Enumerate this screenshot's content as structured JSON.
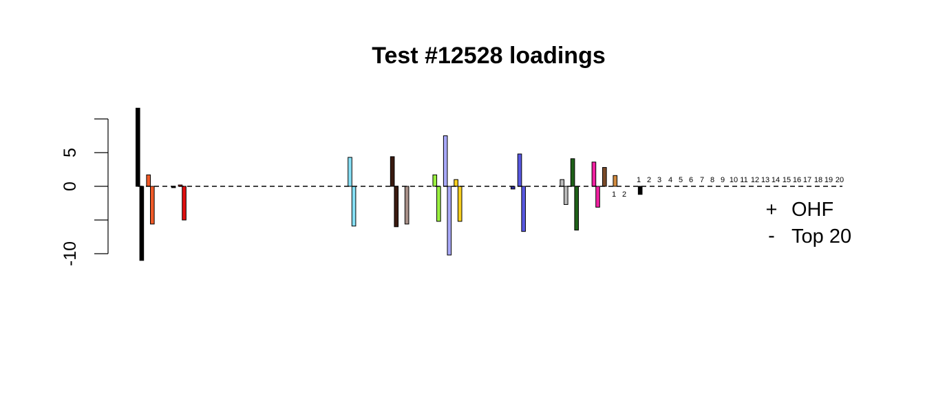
{
  "chart_data": {
    "type": "bar",
    "title": "Test #12528 loadings",
    "xlabel": "",
    "ylabel": "",
    "ylim": [
      -11,
      11
    ],
    "y_ticks": [
      -10,
      0,
      5
    ],
    "y_tick_labels": [
      "-10",
      "0",
      "5"
    ],
    "baseline": "dashed",
    "legend": {
      "placement": "right",
      "entries": [
        {
          "symbol": "+",
          "label": "OHF"
        },
        {
          "symbol": "-",
          "label": "Top 20"
        }
      ]
    },
    "pos_label": "OHF",
    "neg_label": "Top 20",
    "groups": [
      {
        "pos": 11.6,
        "neg": -11.0,
        "color": "#000000"
      },
      {
        "pos": 1.7,
        "neg": -5.6,
        "color": "#F05A28"
      },
      {
        "pos": 0.0,
        "neg": 0.0,
        "color": "#F05A28"
      },
      {
        "pos": 0.0,
        "neg": -0.2,
        "color": "#000000"
      },
      {
        "pos": 0.2,
        "neg": -5.0,
        "color": "#E01010"
      },
      {
        "pos": 0.0,
        "neg": 0.0,
        "color": "#000000"
      },
      {
        "pos": 0.0,
        "neg": 0.0,
        "color": "#000000"
      },
      {
        "pos": 0.0,
        "neg": 0.0,
        "color": "#000000"
      },
      {
        "pos": 0.0,
        "neg": 0.0,
        "color": "#000000"
      },
      {
        "pos": 0.0,
        "neg": 0.0,
        "color": "#000000"
      },
      {
        "pos": 0.0,
        "neg": 0.0,
        "color": "#000000"
      },
      {
        "pos": 0.0,
        "neg": 0.0,
        "color": "#000000"
      },
      {
        "pos": 0.0,
        "neg": 0.0,
        "color": "#000000"
      },
      {
        "pos": 0.0,
        "neg": 0.0,
        "color": "#000000"
      },
      {
        "pos": 0.0,
        "neg": 0.0,
        "color": "#000000"
      },
      {
        "pos": 0.0,
        "neg": 0.0,
        "color": "#000000"
      },
      {
        "pos": 0.0,
        "neg": 0.0,
        "color": "#000000"
      },
      {
        "pos": 0.0,
        "neg": 0.0,
        "color": "#000000"
      },
      {
        "pos": 0.0,
        "neg": 0.0,
        "color": "#000000"
      },
      {
        "pos": 0.0,
        "neg": 0.0,
        "color": "#000000"
      },
      {
        "pos": 4.3,
        "neg": -5.9,
        "color": "#87E0F5"
      },
      {
        "pos": 0.0,
        "neg": 0.0,
        "color": "#000000"
      },
      {
        "pos": 0.0,
        "neg": 0.0,
        "color": "#000000"
      },
      {
        "pos": 0.0,
        "neg": 0.0,
        "color": "#000000"
      },
      {
        "pos": 4.4,
        "neg": -6.0,
        "color": "#3A1A10"
      },
      {
        "pos": 0.0,
        "neg": -5.6,
        "color": "#A89088"
      },
      {
        "pos": 0.0,
        "neg": 0.0,
        "color": "#000000"
      },
      {
        "pos": 0.0,
        "neg": 0.0,
        "color": "#000000"
      },
      {
        "pos": 1.7,
        "neg": -5.2,
        "color": "#9AF040"
      },
      {
        "pos": 7.5,
        "neg": -10.2,
        "color": "#A8A8F8"
      },
      {
        "pos": 1.0,
        "neg": -5.2,
        "color": "#F8D020"
      },
      {
        "pos": 0.0,
        "neg": 0.0,
        "color": "#000000"
      },
      {
        "pos": 0.0,
        "neg": 0.0,
        "color": "#000000"
      },
      {
        "pos": 0.0,
        "neg": 0.0,
        "color": "#000000"
      },
      {
        "pos": 0.0,
        "neg": 0.0,
        "color": "#000000"
      },
      {
        "pos": 0.0,
        "neg": -0.4,
        "color": "#3030A0"
      },
      {
        "pos": 4.8,
        "neg": -6.7,
        "color": "#5858E0"
      },
      {
        "pos": 0.0,
        "neg": 0.0,
        "color": "#000000"
      },
      {
        "pos": 0.0,
        "neg": 0.0,
        "color": "#000000"
      },
      {
        "pos": 0.0,
        "neg": 0.0,
        "color": "#000000"
      },
      {
        "pos": 1.0,
        "neg": -2.7,
        "color": "#B8B8B8"
      },
      {
        "pos": 4.1,
        "neg": -6.5,
        "color": "#1E6018"
      },
      {
        "pos": 0.0,
        "neg": 0.0,
        "color": "#000000"
      },
      {
        "pos": 3.6,
        "neg": -3.1,
        "color": "#F020A0"
      },
      {
        "pos": 2.8,
        "neg": 0.0,
        "color": "#7A4A28"
      },
      {
        "pos": 1.6,
        "neg": 0.0,
        "color": "#D08A40"
      },
      {
        "pos": 0.0,
        "neg": 0.0,
        "color": "#000000"
      },
      {
        "pos": 0.0,
        "neg": -1.2,
        "color": "#000000"
      },
      {
        "pos": 0.0,
        "neg": 0.0,
        "color": "#000000"
      },
      {
        "pos": 0.0,
        "neg": 0.0,
        "color": "#000000"
      },
      {
        "pos": 0.0,
        "neg": 0.0,
        "color": "#000000"
      },
      {
        "pos": 0.0,
        "neg": 0.0,
        "color": "#000000"
      },
      {
        "pos": 0.0,
        "neg": 0.0,
        "color": "#000000"
      },
      {
        "pos": 0.0,
        "neg": 0.0,
        "color": "#000000"
      },
      {
        "pos": 0.0,
        "neg": 0.0,
        "color": "#000000"
      },
      {
        "pos": 0.0,
        "neg": 0.0,
        "color": "#000000"
      },
      {
        "pos": 0.0,
        "neg": 0.0,
        "color": "#000000"
      },
      {
        "pos": 0.0,
        "neg": 0.0,
        "color": "#000000"
      },
      {
        "pos": 0.0,
        "neg": 0.0,
        "color": "#000000"
      },
      {
        "pos": 0.0,
        "neg": 0.0,
        "color": "#000000"
      },
      {
        "pos": 0.0,
        "neg": 0.0,
        "color": "#000000"
      },
      {
        "pos": 0.0,
        "neg": 0.0,
        "color": "#000000"
      },
      {
        "pos": 0.0,
        "neg": 0.0,
        "color": "#000000"
      },
      {
        "pos": 0.0,
        "neg": 0.0,
        "color": "#000000"
      },
      {
        "pos": 0.0,
        "neg": 0.0,
        "color": "#000000"
      },
      {
        "pos": 0.0,
        "neg": 0.0,
        "color": "#000000"
      },
      {
        "pos": 0.0,
        "neg": 0.0,
        "color": "#000000"
      },
      {
        "pos": 0.0,
        "neg": 0.0,
        "color": "#000000"
      },
      {
        "pos": 0.0,
        "neg": 0.0,
        "color": "#000000"
      },
      {
        "pos": 0.0,
        "neg": 0.0,
        "color": "#000000"
      }
    ],
    "small_labels_row_above": [
      "1",
      "2",
      "3",
      "4",
      "5",
      "6",
      "7",
      "8",
      "9",
      "10",
      "11",
      "12",
      "13",
      "14",
      "15",
      "16",
      "17",
      "18",
      "19",
      "20"
    ],
    "small_labels_row_below": [
      "1",
      "2"
    ]
  }
}
